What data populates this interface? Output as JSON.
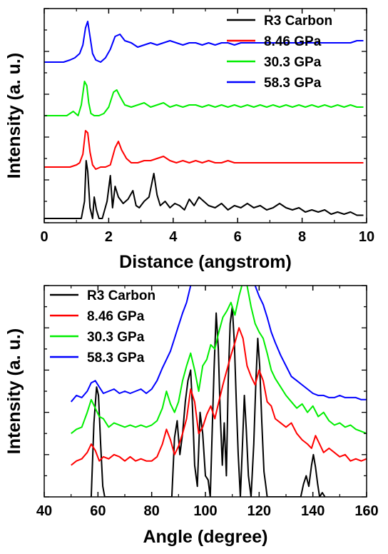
{
  "chart_data": [
    {
      "type": "line",
      "title": "",
      "xlabel": "Distance (angstrom)",
      "ylabel": "Intensity (a. u.)",
      "xlim": [
        0,
        10
      ],
      "ylim": [
        0,
        1
      ],
      "x_ticks": [
        "0",
        "2",
        "4",
        "6",
        "8",
        "10"
      ],
      "y_tick_labels": false,
      "legend_position": "top-right",
      "series": [
        {
          "name": "R3 Carbon",
          "color": "#000000",
          "offset": 0.02,
          "x": [
            0,
            1.15,
            1.25,
            1.3,
            1.35,
            1.42,
            1.5,
            1.55,
            1.62,
            1.7,
            1.8,
            1.95,
            2.05,
            2.12,
            2.2,
            2.3,
            2.45,
            2.6,
            2.75,
            2.85,
            2.95,
            3.1,
            3.25,
            3.4,
            3.5,
            3.6,
            3.75,
            3.9,
            4.05,
            4.2,
            4.35,
            4.5,
            4.65,
            4.8,
            4.95,
            5.1,
            5.3,
            5.5,
            5.7,
            5.9,
            6.1,
            6.3,
            6.5,
            6.7,
            6.9,
            7.1,
            7.3,
            7.5,
            7.7,
            7.9,
            8.1,
            8.3,
            8.5,
            8.7,
            8.9,
            9.1,
            9.3,
            9.5,
            9.7,
            9.9
          ],
          "values": [
            0,
            0,
            0.08,
            0.27,
            0.22,
            0.05,
            0.0,
            0.1,
            0.04,
            0.0,
            0.0,
            0.08,
            0.2,
            0.05,
            0.15,
            0.1,
            0.07,
            0.09,
            0.13,
            0.06,
            0.05,
            0.08,
            0.1,
            0.21,
            0.11,
            0.06,
            0.08,
            0.05,
            0.07,
            0.06,
            0.04,
            0.09,
            0.06,
            0.1,
            0.08,
            0.06,
            0.05,
            0.07,
            0.04,
            0.06,
            0.05,
            0.07,
            0.05,
            0.06,
            0.04,
            0.05,
            0.07,
            0.05,
            0.04,
            0.05,
            0.03,
            0.04,
            0.03,
            0.04,
            0.02,
            0.03,
            0.02,
            0.03,
            0.015,
            0.015
          ]
        },
        {
          "name": "8.46 GPa",
          "color": "#ff0000",
          "offset": 0.26,
          "x": [
            0,
            0.8,
            1.0,
            1.1,
            1.2,
            1.28,
            1.35,
            1.42,
            1.5,
            1.6,
            1.75,
            1.9,
            2.05,
            2.2,
            2.3,
            2.4,
            2.55,
            2.7,
            2.9,
            3.1,
            3.3,
            3.5,
            3.7,
            3.9,
            4.1,
            4.3,
            4.5,
            4.7,
            4.9,
            5.1,
            5.3,
            5.5,
            5.7,
            5.9,
            6.1,
            6.3,
            6.5,
            6.7,
            6.9,
            7.1,
            7.3,
            7.5,
            7.7,
            7.9,
            8.1,
            8.3,
            8.5,
            8.7,
            8.9,
            9.1,
            9.3,
            9.5,
            9.7,
            9.9
          ],
          "values": [
            0,
            0,
            0.01,
            0.02,
            0.06,
            0.17,
            0.16,
            0.07,
            0.01,
            -0.01,
            0.0,
            0.0,
            0.01,
            0.09,
            0.12,
            0.08,
            0.04,
            0.02,
            0.02,
            0.03,
            0.03,
            0.04,
            0.05,
            0.03,
            0.02,
            0.03,
            0.02,
            0.03,
            0.02,
            0.03,
            0.02,
            0.02,
            0.03,
            0.02,
            0.02,
            0.02,
            0.02,
            0.02,
            0.02,
            0.02,
            0.02,
            0.02,
            0.02,
            0.02,
            0.02,
            0.02,
            0.02,
            0.02,
            0.02,
            0.02,
            0.02,
            0.02,
            0.02,
            0.02
          ]
        },
        {
          "name": "30.3 GPa",
          "color": "#00ee00",
          "offset": 0.5,
          "x": [
            0,
            0.7,
            0.9,
            1.05,
            1.15,
            1.25,
            1.32,
            1.38,
            1.45,
            1.55,
            1.7,
            1.85,
            2.0,
            2.15,
            2.25,
            2.35,
            2.5,
            2.7,
            2.9,
            3.1,
            3.3,
            3.5,
            3.7,
            3.9,
            4.1,
            4.3,
            4.5,
            4.7,
            4.9,
            5.1,
            5.3,
            5.5,
            5.7,
            5.9,
            6.1,
            6.3,
            6.5,
            6.7,
            6.9,
            7.1,
            7.3,
            7.5,
            7.7,
            7.9,
            8.1,
            8.3,
            8.5,
            8.7,
            8.9,
            9.1,
            9.3,
            9.5,
            9.7,
            9.9
          ],
          "values": [
            0,
            0,
            0.02,
            0.0,
            0.05,
            0.16,
            0.14,
            0.06,
            0.01,
            0.0,
            0.0,
            0.01,
            0.04,
            0.11,
            0.12,
            0.09,
            0.05,
            0.04,
            0.05,
            0.06,
            0.04,
            0.05,
            0.06,
            0.04,
            0.05,
            0.04,
            0.05,
            0.05,
            0.04,
            0.05,
            0.04,
            0.05,
            0.04,
            0.05,
            0.04,
            0.05,
            0.04,
            0.05,
            0.04,
            0.05,
            0.04,
            0.05,
            0.04,
            0.05,
            0.04,
            0.05,
            0.04,
            0.05,
            0.04,
            0.05,
            0.04,
            0.05,
            0.04,
            0.04
          ]
        },
        {
          "name": "58.3 GPa",
          "color": "#0000ff",
          "offset": 0.75,
          "x": [
            0,
            0.6,
            0.8,
            0.95,
            1.1,
            1.2,
            1.28,
            1.35,
            1.42,
            1.5,
            1.6,
            1.75,
            1.9,
            2.05,
            2.2,
            2.35,
            2.5,
            2.7,
            2.9,
            3.1,
            3.3,
            3.5,
            3.7,
            3.9,
            4.1,
            4.3,
            4.5,
            4.7,
            4.9,
            5.1,
            5.3,
            5.5,
            5.7,
            5.9,
            6.1,
            6.3,
            6.5,
            6.7,
            6.9,
            7.1,
            7.3,
            7.5,
            7.7,
            7.9,
            8.1,
            8.3,
            8.5,
            8.7,
            8.9,
            9.1,
            9.3,
            9.5,
            9.7,
            9.9
          ],
          "values": [
            0,
            0,
            0.01,
            0.02,
            0.04,
            0.08,
            0.16,
            0.19,
            0.12,
            0.04,
            0.01,
            0.0,
            0.02,
            0.06,
            0.12,
            0.13,
            0.1,
            0.09,
            0.07,
            0.08,
            0.09,
            0.08,
            0.09,
            0.1,
            0.09,
            0.08,
            0.09,
            0.09,
            0.08,
            0.09,
            0.08,
            0.09,
            0.09,
            0.08,
            0.09,
            0.09,
            0.09,
            0.09,
            0.09,
            0.09,
            0.09,
            0.09,
            0.09,
            0.09,
            0.09,
            0.09,
            0.09,
            0.09,
            0.09,
            0.09,
            0.09,
            0.09,
            0.1,
            0.1
          ]
        }
      ]
    },
    {
      "type": "line",
      "title": "",
      "xlabel": "Angle (degree)",
      "ylabel": "Intensity (a. u.)",
      "xlim": [
        40,
        160
      ],
      "ylim": [
        0,
        1
      ],
      "x_ticks": [
        "40",
        "60",
        "80",
        "100",
        "120",
        "140",
        "160"
      ],
      "y_tick_labels": false,
      "legend_position": "top-left",
      "series": [
        {
          "name": "R3 Carbon",
          "color": "#000000",
          "offset": 0.0,
          "x": [
            57.5,
            58.5,
            59.5,
            60.2,
            61,
            61.8,
            62.5,
            87.5,
            88.5,
            89.5,
            90.5,
            91.5,
            92.5,
            93.5,
            94.5,
            95.2,
            96,
            97,
            98,
            99,
            100,
            101,
            101.8,
            102.5,
            103.2,
            104,
            104.8,
            105.5,
            106.3,
            107,
            107.8,
            108.5,
            109.2,
            110,
            110.8,
            111.5,
            112.2,
            113,
            113.8,
            114.5,
            115.2,
            116,
            117,
            118,
            118.8,
            119.5,
            120.2,
            121,
            121.8,
            122.5,
            123,
            135.5,
            136.5,
            137.5,
            138.5,
            139.5,
            140.2,
            141,
            141.8,
            142.5,
            143.5,
            144.5
          ],
          "values": [
            0,
            0.35,
            0.52,
            0.48,
            0.25,
            0.05,
            0,
            0,
            0.28,
            0.36,
            0.2,
            0.3,
            0.45,
            0.55,
            0.6,
            0.42,
            0.15,
            0.05,
            0.4,
            0.3,
            0.1,
            0.08,
            0.0,
            0.3,
            0.6,
            0.87,
            0.7,
            0.4,
            0.15,
            0.35,
            0.1,
            0.55,
            0.82,
            0.9,
            0.72,
            0.45,
            0.2,
            0.0,
            0.25,
            0.48,
            0.32,
            0.1,
            0.0,
            0.25,
            0.55,
            0.75,
            0.62,
            0.35,
            0.12,
            0.05,
            0,
            0,
            0.06,
            0.1,
            0.05,
            0.15,
            0.2,
            0.14,
            0.06,
            0.0,
            0.02,
            0
          ]
        },
        {
          "name": "8.46 GPa",
          "color": "#ff0000",
          "offset": 0.15,
          "x": [
            50,
            52,
            54,
            56,
            57.5,
            59,
            60.5,
            62,
            64,
            66,
            68,
            70,
            72,
            74,
            76,
            78,
            80,
            82,
            84,
            85.5,
            87,
            88.5,
            90,
            91.5,
            93,
            94.5,
            96,
            97.5,
            99,
            100.5,
            102,
            103.5,
            105,
            106.5,
            108,
            109.5,
            111,
            112.5,
            114,
            115.5,
            117,
            118.5,
            120,
            121.5,
            123,
            124.5,
            126,
            128,
            130,
            132,
            134,
            136,
            138,
            139.5,
            141,
            142.5,
            144,
            146,
            148,
            150,
            152,
            154,
            156,
            158,
            160
          ],
          "values": [
            0.0,
            0.02,
            0.03,
            0.06,
            0.1,
            0.07,
            0.02,
            0.04,
            0.03,
            0.05,
            0.04,
            0.02,
            0.04,
            0.02,
            0.03,
            0.02,
            0.02,
            0.04,
            0.1,
            0.17,
            0.12,
            0.05,
            0.09,
            0.15,
            0.22,
            0.36,
            0.3,
            0.15,
            0.18,
            0.24,
            0.28,
            0.22,
            0.3,
            0.38,
            0.45,
            0.52,
            0.58,
            0.65,
            0.6,
            0.47,
            0.42,
            0.38,
            0.45,
            0.4,
            0.3,
            0.28,
            0.22,
            0.2,
            0.18,
            0.2,
            0.15,
            0.12,
            0.1,
            0.08,
            0.14,
            0.1,
            0.06,
            0.08,
            0.06,
            0.04,
            0.05,
            0.02,
            0.03,
            0.02,
            0.03
          ]
        },
        {
          "name": "30.3 GPa",
          "color": "#00ee00",
          "offset": 0.3,
          "x": [
            50,
            52,
            54,
            56,
            57.5,
            59,
            60.5,
            62,
            64,
            66,
            68,
            70,
            72,
            74,
            76,
            78,
            80,
            82,
            84,
            85.5,
            87,
            88.5,
            90,
            91.5,
            93,
            94.5,
            96,
            97.5,
            99,
            100.5,
            102,
            103.5,
            105,
            106.5,
            108,
            109.5,
            111,
            112.5,
            114,
            115.5,
            117,
            118.5,
            120,
            121.5,
            123,
            124.5,
            126,
            128,
            130,
            132,
            134,
            136,
            138,
            140,
            142,
            144,
            146,
            148,
            150,
            152,
            154,
            156,
            158,
            160
          ],
          "values": [
            0.0,
            0.02,
            0.03,
            0.1,
            0.16,
            0.12,
            0.08,
            0.07,
            0.03,
            0.05,
            0.04,
            0.03,
            0.04,
            0.03,
            0.04,
            0.03,
            0.04,
            0.06,
            0.12,
            0.2,
            0.14,
            0.1,
            0.15,
            0.25,
            0.32,
            0.38,
            0.3,
            0.2,
            0.32,
            0.35,
            0.42,
            0.4,
            0.48,
            0.55,
            0.58,
            0.62,
            0.56,
            0.65,
            0.72,
            0.7,
            0.6,
            0.52,
            0.48,
            0.45,
            0.38,
            0.3,
            0.26,
            0.22,
            0.18,
            0.15,
            0.12,
            0.14,
            0.1,
            0.13,
            0.08,
            0.1,
            0.06,
            0.04,
            0.05,
            0.03,
            0.04,
            0.02,
            0.01,
            0.0
          ]
        },
        {
          "name": "58.3 GPa",
          "color": "#0000ff",
          "offset": 0.45,
          "x": [
            50,
            52,
            54,
            56,
            57.5,
            59,
            60.5,
            62,
            64,
            66,
            68,
            70,
            72,
            74,
            76,
            78,
            80,
            82,
            84,
            85.5,
            87,
            88.5,
            90,
            91.5,
            93,
            94.5,
            96,
            97.5,
            99,
            100.5,
            102,
            103.5,
            105,
            106.5,
            108,
            109.5,
            111,
            112.5,
            114,
            115.5,
            117,
            118.5,
            120,
            121.5,
            123,
            124.5,
            126,
            128,
            130,
            132,
            134,
            136,
            138,
            140,
            142,
            144,
            146,
            148,
            150,
            152,
            154,
            156,
            158,
            160
          ],
          "values": [
            0.0,
            0.03,
            0.02,
            0.05,
            0.09,
            0.1,
            0.07,
            0.04,
            0.05,
            0.06,
            0.04,
            0.05,
            0.04,
            0.05,
            0.06,
            0.04,
            0.06,
            0.1,
            0.16,
            0.2,
            0.24,
            0.3,
            0.36,
            0.42,
            0.47,
            0.55,
            0.6,
            0.58,
            0.62,
            0.66,
            0.72,
            0.75,
            0.82,
            0.85,
            0.9,
            0.88,
            0.82,
            0.78,
            0.74,
            0.68,
            0.6,
            0.55,
            0.5,
            0.46,
            0.4,
            0.33,
            0.28,
            0.22,
            0.17,
            0.12,
            0.1,
            0.08,
            0.06,
            0.04,
            0.03,
            0.03,
            0.02,
            0.02,
            0.03,
            0.02,
            0.02,
            0.02,
            0.01,
            0.01
          ]
        }
      ]
    }
  ]
}
